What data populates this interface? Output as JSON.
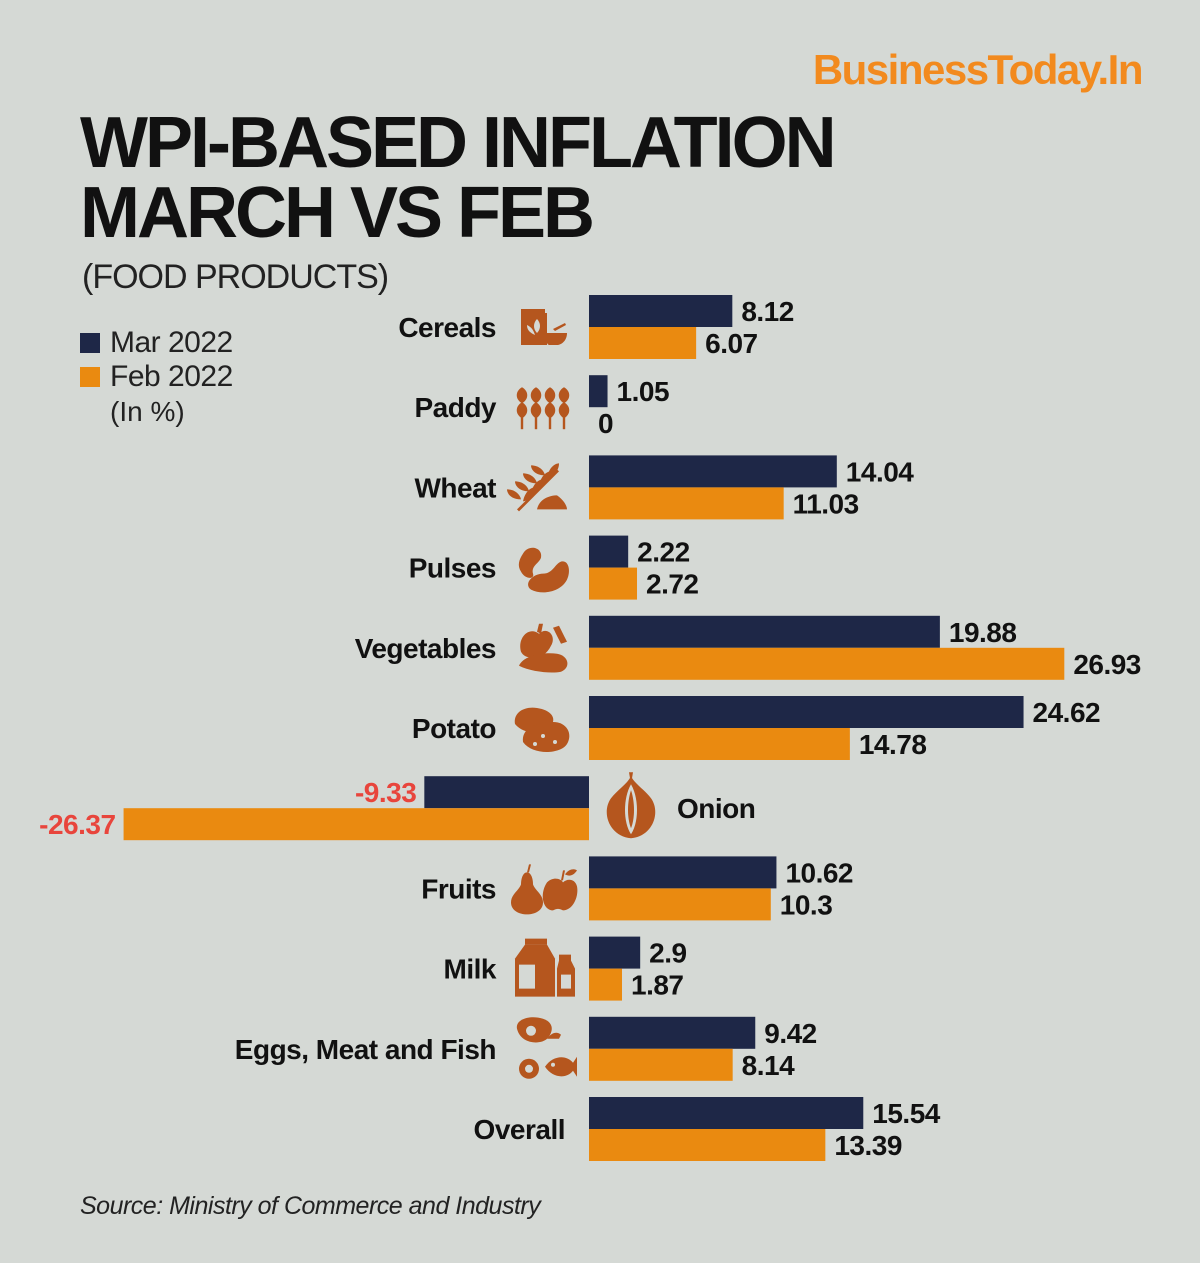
{
  "brand": "BusinessToday.In",
  "title_line1": "WPI-BASED INFLATION",
  "title_line2": "MARCH VS FEB",
  "subtitle": "(FOOD PRODUCTS)",
  "legend": {
    "mar": "Mar 2022",
    "feb": "Feb 2022",
    "unit": "(In %)"
  },
  "source": "Source: Ministry of Commerce and Industry",
  "colors": {
    "mar": "#1e2747",
    "feb": "#ea8a10",
    "icon": "#b5561e",
    "negative_label": "#e8453c",
    "background": "#d5d9d5"
  },
  "chart_data": {
    "type": "bar",
    "orientation": "horizontal",
    "categories": [
      "Cereals",
      "Paddy",
      "Wheat",
      "Pulses",
      "Vegetables",
      "Potato",
      "Onion",
      "Fruits",
      "Milk",
      "Eggs, Meat and Fish",
      "Overall"
    ],
    "icons": [
      "cereals-icon",
      "paddy-icon",
      "wheat-icon",
      "pulses-icon",
      "vegetables-icon",
      "potato-icon",
      "onion-icon",
      "fruits-icon",
      "milk-icon",
      "eggs-meat-fish-icon",
      null
    ],
    "series": [
      {
        "name": "Mar 2022",
        "values": [
          8.12,
          1.05,
          14.04,
          2.22,
          19.88,
          24.62,
          -9.33,
          10.62,
          2.9,
          9.42,
          15.54
        ]
      },
      {
        "name": "Feb 2022",
        "values": [
          6.07,
          0,
          11.03,
          2.72,
          26.93,
          14.78,
          -26.37,
          10.3,
          1.87,
          8.14,
          13.39
        ]
      }
    ],
    "value_labels": [
      [
        "8.12",
        "1.05",
        "14.04",
        "2.22",
        "19.88",
        "24.62",
        "-9.33",
        "10.62",
        "2.9",
        "9.42",
        "15.54"
      ],
      [
        "6.07",
        "0",
        "11.03",
        "2.72",
        "26.93",
        "14.78",
        "-26.37",
        "10.3",
        "1.87",
        "8.14",
        "13.39"
      ]
    ]
  }
}
